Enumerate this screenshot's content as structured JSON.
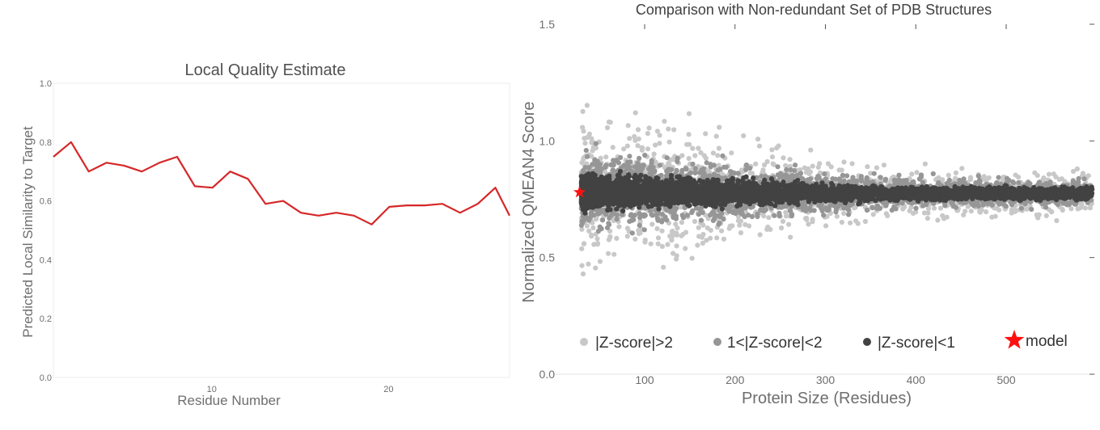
{
  "chart_data": [
    {
      "type": "line",
      "title": "Local Quality Estimate",
      "xlabel": "Residue Number",
      "ylabel": "Predicted Local Similarity to Target",
      "xlim": [
        1,
        26
      ],
      "ylim": [
        0.0,
        1.0
      ],
      "x_ticks": [
        "10",
        "20"
      ],
      "y_ticks": [
        "0.0",
        "0.2",
        "0.4",
        "0.6",
        "0.8",
        "1.0"
      ],
      "grid": false,
      "series": [
        {
          "color": "#d62728",
          "x": [
            1,
            2,
            3,
            4,
            5,
            6,
            7,
            8,
            9,
            10,
            11,
            12,
            13,
            14,
            15,
            16,
            17,
            18,
            19,
            20,
            21,
            22,
            23,
            24,
            25,
            26
          ],
          "values": [
            0.75,
            0.8,
            0.7,
            0.73,
            0.72,
            0.7,
            0.73,
            0.75,
            0.65,
            0.645,
            0.7,
            0.675,
            0.59,
            0.6,
            0.56,
            0.55,
            0.56,
            0.55,
            0.52,
            0.58,
            0.585,
            0.585,
            0.59,
            0.56,
            0.59,
            0.645
          ]
        }
      ],
      "tail_value": 0.55
    },
    {
      "type": "scatter",
      "title": "Comparison with Non-redundant Set of PDB Structures",
      "xlabel": "Protein Size (Residues)",
      "ylabel": "Normalized QMEAN4 Score",
      "xlim": [
        20,
        595
      ],
      "ylim": [
        0.0,
        1.5
      ],
      "x_ticks": [
        "100",
        "200",
        "300",
        "400",
        "500"
      ],
      "y_ticks": [
        "0.0",
        "0.5",
        "1.0",
        "1.5"
      ],
      "legend_placement": "bottom",
      "series": [
        {
          "name": "|Z-score|>2",
          "color": "#c8c8c8"
        },
        {
          "name": "1<|Z-score|<2",
          "color": "#969696"
        },
        {
          "name": "|Z-score|<1",
          "color": "#424242"
        },
        {
          "name": "model",
          "color": "#ff1010",
          "marker": "star",
          "x": [
            28
          ],
          "y": [
            0.78
          ]
        }
      ],
      "bands": {
        "z_lt_1": {
          "center": 0.785,
          "halfwidth_at_small": 0.07,
          "halfwidth_at_large": 0.025
        },
        "z_1_2": {
          "center": 0.785,
          "halfwidth_at_small": 0.13,
          "halfwidth_at_large": 0.05
        },
        "z_gt_2": {
          "center": 0.785,
          "halfwidth_at_small": 0.23,
          "halfwidth_at_large": 0.07
        }
      }
    }
  ]
}
